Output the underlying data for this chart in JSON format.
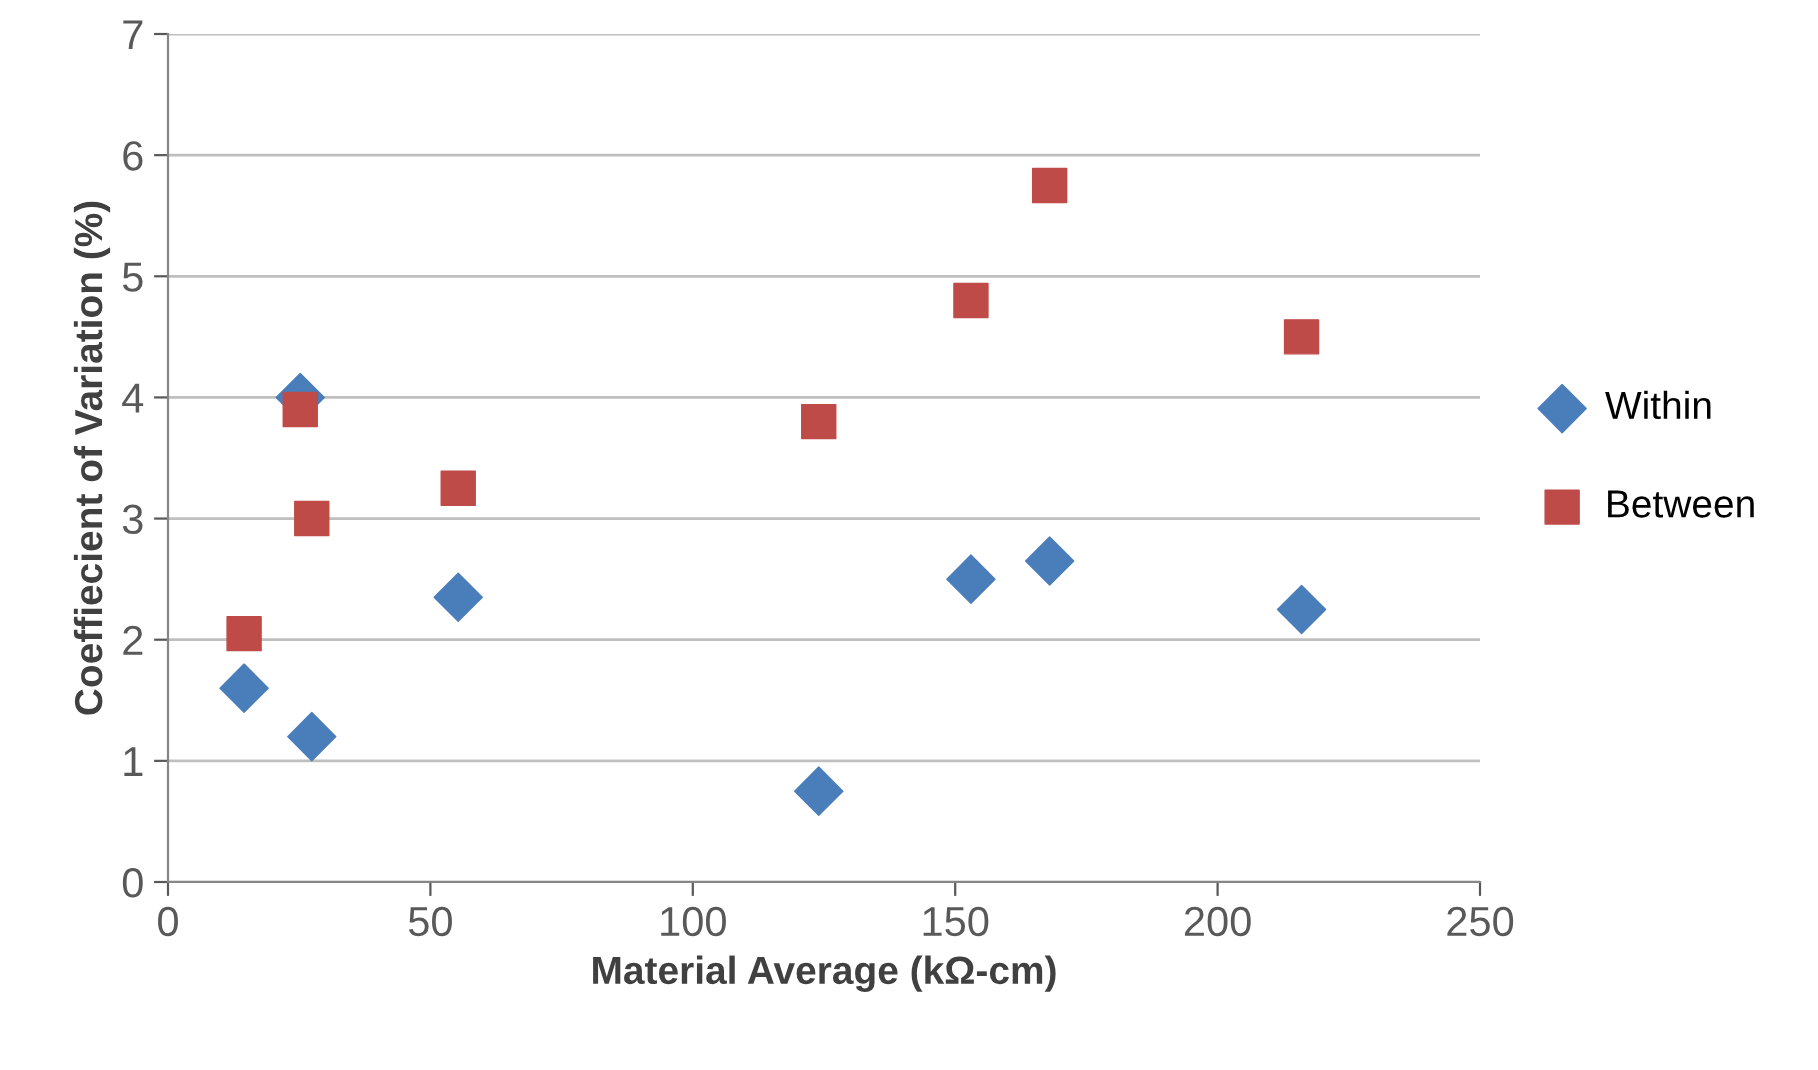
{
  "chart_data": {
    "type": "scatter",
    "xlabel": "Material Average (kΩ-cm)",
    "ylabel": "Coeffiecient of Variation (%)",
    "xlim": [
      0,
      250
    ],
    "xticks": [
      0,
      50,
      100,
      150,
      200,
      250
    ],
    "ylim": [
      0,
      7
    ],
    "yticks": [
      0,
      1,
      2,
      3,
      4,
      5,
      6,
      7
    ],
    "grid": "y",
    "legend": "right",
    "series": [
      {
        "name": "Within",
        "color": "#4a7ebb",
        "marker": "diamond",
        "x": [
          14.5,
          25.2,
          27.4,
          55.3,
          124,
          153,
          168,
          216
        ],
        "values": [
          1.6,
          4.0,
          1.2,
          2.35,
          0.75,
          2.5,
          2.65,
          2.25
        ]
      },
      {
        "name": "Between",
        "color": "#be4b48",
        "marker": "square",
        "x": [
          14.5,
          25.2,
          27.4,
          55.3,
          124,
          153,
          168,
          216
        ],
        "values": [
          2.05,
          3.9,
          3.0,
          3.25,
          3.8,
          4.8,
          5.75,
          4.5
        ]
      }
    ]
  }
}
